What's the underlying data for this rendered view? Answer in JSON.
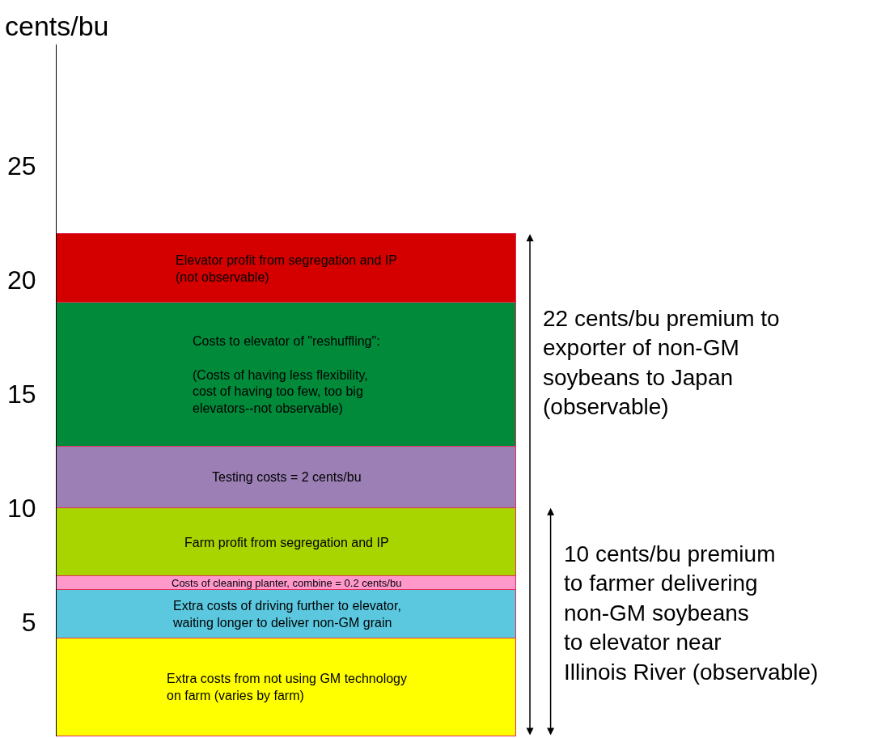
{
  "chart_data": {
    "type": "bar",
    "stacked": true,
    "ylabel": "cents/bu",
    "categories": [
      null
    ],
    "series": [
      {
        "name": "Extra costs from not using GM technology\non farm (varies by farm)",
        "color": "#ffff00",
        "values": [
          4.3
        ]
      },
      {
        "name": "Extra costs of driving further to elevator,\nwaiting longer to deliver non-GM grain",
        "color": "#5bc8e0",
        "values": [
          2.1
        ]
      },
      {
        "name": "Costs of cleaning planter, combine = 0.2 cents/bu",
        "color": "#ff99cc",
        "values": [
          0.6
        ]
      },
      {
        "name": "Farm profit from segregation and IP",
        "color": "#a8d400",
        "values": [
          3.0
        ]
      },
      {
        "name": "Testing costs = 2 cents/bu",
        "color": "#9b7fb5",
        "values": [
          2.7
        ]
      },
      {
        "name": "Costs to elevator of \"reshuffling\":\n\n(Costs of having less flexibility,\ncost of having too few, too big\nelevators--not observable)",
        "color": "#008a3a",
        "values": [
          6.3
        ]
      },
      {
        "name": "Elevator profit from segregation and IP\n(not observable)",
        "color": "#d40000",
        "values": [
          3.0
        ]
      }
    ],
    "ylim": [
      0,
      30.3
    ],
    "yticks": [
      5,
      10,
      15,
      20,
      25
    ],
    "legend": false,
    "annotations": [
      "22 cents/bu premium to\nexporter of non-GM\nsoybeans to Japan\n(observable)",
      "10 cents/bu premium\nto farmer delivering\nnon-GM soybeans\nto elevator near\nIllinois River (observable)"
    ]
  }
}
